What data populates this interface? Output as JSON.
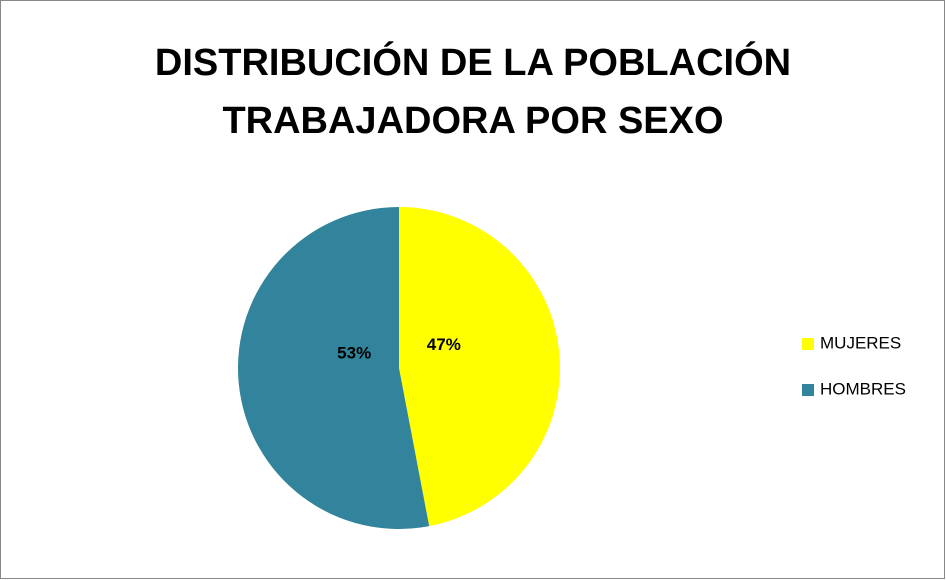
{
  "chart_data": {
    "type": "pie",
    "title": "DISTRIBUCIÓN DE LA POBLACIÓN TRABAJADORA POR SEXO",
    "categories": [
      "MUJERES",
      "HOMBRES"
    ],
    "values": [
      47,
      53
    ],
    "value_labels": [
      "47%",
      "53%"
    ],
    "colors": [
      "#ffff00",
      "#31849b"
    ],
    "legend": "right"
  }
}
